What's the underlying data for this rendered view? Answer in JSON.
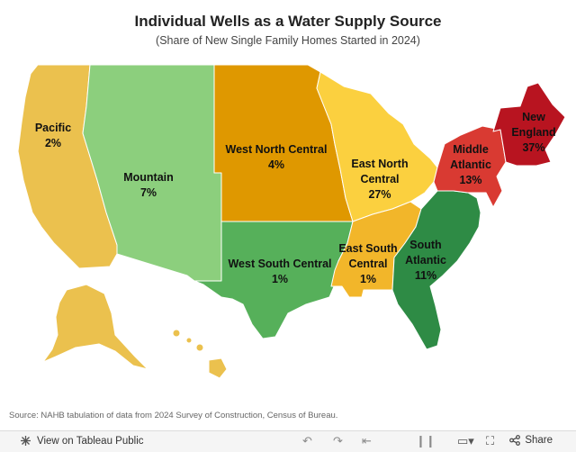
{
  "header": {
    "title": "Individual Wells as a Water Supply Source",
    "subtitle": "(Share of New Single Family Homes Started in 2024)"
  },
  "map": {
    "regions": [
      {
        "id": "pacific",
        "name": "Pacific",
        "value": "2%",
        "color": "#ebc14e"
      },
      {
        "id": "mountain",
        "name": "Mountain",
        "value": "7%",
        "color": "#8ccf7d"
      },
      {
        "id": "west-north-central",
        "name": "West North Central",
        "value": "4%",
        "color": "#df9800"
      },
      {
        "id": "east-north-central",
        "name": "East North Central",
        "value": "27%",
        "color": "#fbd03f"
      },
      {
        "id": "west-south-central",
        "name": "West South Central",
        "value": "1%",
        "color": "#56b05a"
      },
      {
        "id": "east-south-central",
        "name": "East South Central",
        "value": "1%",
        "color": "#f2b62a"
      },
      {
        "id": "south-atlantic",
        "name": "South Atlantic",
        "value": "11%",
        "color": "#2e8b45"
      },
      {
        "id": "middle-atlantic",
        "name": "Middle Atlantic",
        "value": "13%",
        "color": "#d93a32"
      },
      {
        "id": "new-england",
        "name": "New England",
        "value": "37%",
        "color": "#b81420"
      }
    ],
    "labels": {
      "pacific": {
        "line1": "Pacific",
        "line2": "2%"
      },
      "mountain": {
        "line1": "Mountain",
        "line2": "7%"
      },
      "wnc": {
        "line1": "West North Central",
        "line2": "4%"
      },
      "enc": {
        "line1": "East North",
        "line2": "Central",
        "line3": "27%"
      },
      "wsc": {
        "line1": "West South Central",
        "line2": "1%"
      },
      "esc": {
        "line1": "East South",
        "line2": "Central",
        "line3": "1%"
      },
      "sa": {
        "line1": "South",
        "line2": "Atlantic",
        "line3": "11%"
      },
      "ma": {
        "line1": "Middle",
        "line2": "Atlantic",
        "line3": "13%"
      },
      "ne": {
        "line1": "New",
        "line2": "England",
        "line3": "37%"
      }
    }
  },
  "footer": {
    "source": "Source: NAHB tabulation of data from 2024 Survey of Construction, Census of Bureau."
  },
  "toolbar": {
    "view_label": "View on Tableau Public",
    "share_label": "Share"
  }
}
